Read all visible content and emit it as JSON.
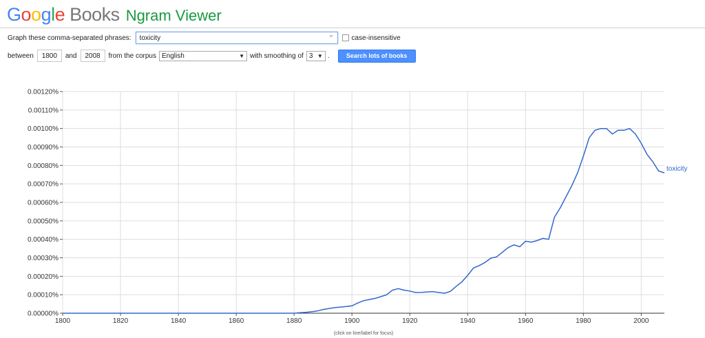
{
  "logo": {
    "google_letters": [
      {
        "ch": "G",
        "color": "#4285f4"
      },
      {
        "ch": "o",
        "color": "#ea4335"
      },
      {
        "ch": "o",
        "color": "#fbbc05"
      },
      {
        "ch": "g",
        "color": "#4285f4"
      },
      {
        "ch": "l",
        "color": "#34a853"
      },
      {
        "ch": "e",
        "color": "#ea4335"
      }
    ],
    "books": "Books",
    "product": "Ngram Viewer"
  },
  "controls": {
    "phrase_label": "Graph these comma-separated phrases:",
    "phrase_value": "toxicity",
    "case_insensitive_label": "case-insensitive",
    "between_label": "between",
    "start_year": "1800",
    "and_label": "and",
    "end_year": "2008",
    "corpus_label": "from the corpus",
    "corpus_value": "English",
    "smoothing_label": "with smoothing of",
    "smoothing_value": "3",
    "smoothing_suffix": ".",
    "search_button": "Search lots of books"
  },
  "chart_hint": "(click on line/label for focus)",
  "chart_data": {
    "type": "line",
    "xlim": [
      1800,
      2008
    ],
    "ylim": [
      0,
      0.0012
    ],
    "grid": true,
    "x_ticks": [
      1800,
      1820,
      1840,
      1860,
      1880,
      1900,
      1920,
      1940,
      1960,
      1980,
      2000
    ],
    "x_tick_labels": [
      "1800",
      "1820",
      "1840",
      "1860",
      "1880",
      "1900",
      "1920",
      "1940",
      "1960",
      "1980",
      "2000"
    ],
    "y_ticks": [
      0,
      0.0001,
      0.0002,
      0.0003,
      0.0004,
      0.0005,
      0.0006,
      0.0007,
      0.0008,
      0.0009,
      0.001,
      0.0011,
      0.0012
    ],
    "y_tick_labels": [
      "0.00000%",
      "0.00010%",
      "0.00020%",
      "0.00030%",
      "0.00040%",
      "0.00050%",
      "0.00060%",
      "0.00070%",
      "0.00080%",
      "0.00090%",
      "0.00100%",
      "0.00110%",
      "0.00120%"
    ],
    "series": [
      {
        "name": "toxicity",
        "color": "#3366cc",
        "x": [
          1800,
          1880,
          1882,
          1884,
          1886,
          1888,
          1890,
          1892,
          1894,
          1896,
          1898,
          1900,
          1902,
          1904,
          1906,
          1908,
          1910,
          1912,
          1914,
          1916,
          1918,
          1920,
          1922,
          1924,
          1926,
          1928,
          1930,
          1932,
          1934,
          1936,
          1938,
          1940,
          1942,
          1944,
          1946,
          1948,
          1950,
          1952,
          1954,
          1956,
          1958,
          1960,
          1962,
          1964,
          1966,
          1968,
          1970,
          1972,
          1974,
          1976,
          1978,
          1980,
          1982,
          1984,
          1986,
          1988,
          1990,
          1992,
          1994,
          1996,
          1998,
          2000,
          2002,
          2004,
          2006,
          2008
        ],
        "values": [
          0,
          0,
          3e-06,
          5e-06,
          8e-06,
          1.2e-05,
          2e-05,
          2.5e-05,
          3e-05,
          3.3e-05,
          3.6e-05,
          4e-05,
          5.5e-05,
          6.8e-05,
          7.4e-05,
          8e-05,
          9e-05,
          0.0001,
          0.000125,
          0.000133,
          0.000125,
          0.00012,
          0.000112,
          0.000113,
          0.000115,
          0.000117,
          0.000112,
          0.000108,
          0.000118,
          0.000145,
          0.00017,
          0.000205,
          0.000245,
          0.000258,
          0.000275,
          0.000298,
          0.000305,
          0.00033,
          0.000355,
          0.00037,
          0.00036,
          0.00039,
          0.000385,
          0.000393,
          0.000405,
          0.0004,
          0.00052,
          0.00057,
          0.00063,
          0.00069,
          0.00076,
          0.00085,
          0.00095,
          0.00099,
          0.001,
          0.001,
          0.00097,
          0.00099,
          0.00099,
          0.001,
          0.00097,
          0.00092,
          0.00086,
          0.00082,
          0.00077,
          0.00076
        ]
      }
    ]
  }
}
